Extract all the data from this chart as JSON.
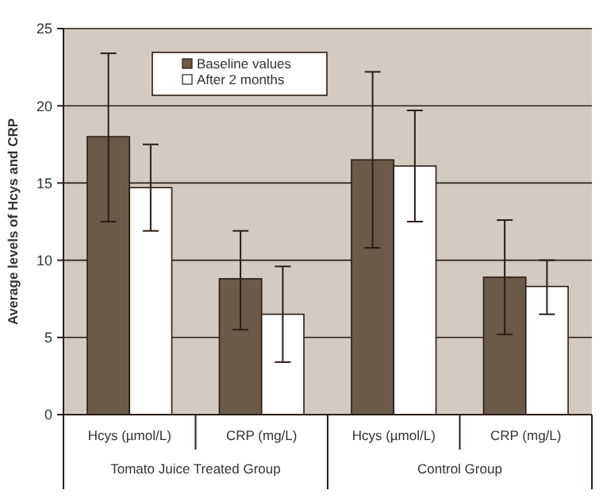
{
  "chart_data": {
    "type": "bar",
    "ylabel": "Average levels of Hcys and CRP",
    "categories": [
      "Hcys (µmol/L)",
      "CRP (mg/L)",
      "Hcys (µmol/L)",
      "CRP (mg/L)"
    ],
    "series": [
      {
        "name": "Baseline values",
        "color": "#6b5a48",
        "values": [
          18.0,
          8.8,
          16.5,
          8.9
        ],
        "errors": [
          [
            12.5,
            23.4
          ],
          [
            5.5,
            11.9
          ],
          [
            10.8,
            22.2
          ],
          [
            5.2,
            12.6
          ]
        ]
      },
      {
        "name": "After 2 months",
        "color": "#ffffff",
        "values": [
          14.7,
          6.5,
          16.1,
          8.3
        ],
        "errors": [
          [
            11.9,
            17.5
          ],
          [
            3.4,
            9.6
          ],
          [
            12.5,
            19.7
          ],
          [
            6.5,
            10.0
          ]
        ]
      }
    ],
    "ylim": [
      0,
      25
    ],
    "yticks": [
      0,
      5,
      10,
      15,
      20,
      25
    ],
    "grid": "y",
    "legend": "top left",
    "annotations": [
      "Tomato Juice Treated Group",
      "Control Group"
    ]
  }
}
